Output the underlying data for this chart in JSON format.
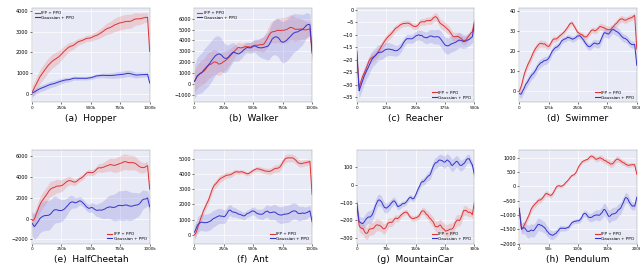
{
  "subplots": [
    {
      "label": "(a)  Hopper",
      "env": "hopper",
      "legend_loc": "upper left"
    },
    {
      "label": "(b)  Walker",
      "env": "walker",
      "legend_loc": "upper left"
    },
    {
      "label": "(c)  Reacher",
      "env": "reacher",
      "legend_loc": "lower right"
    },
    {
      "label": "(d)  Swimmer",
      "env": "swimmer",
      "legend_loc": "lower right"
    },
    {
      "label": "(e)  HalfCheetah",
      "env": "halfcheetah",
      "legend_loc": "lower right"
    },
    {
      "label": "(f)  Ant",
      "env": "ant",
      "legend_loc": "lower right"
    },
    {
      "label": "(g)  MountainCar",
      "env": "mountaincar",
      "legend_loc": "lower right"
    },
    {
      "label": "(h)  Pendulum",
      "env": "pendulum",
      "legend_loc": "lower right"
    }
  ],
  "legend_labels": [
    "IFP + PPO",
    "Gaussian + PPO"
  ],
  "red_color": "#dd3333",
  "blue_color": "#3333cc",
  "red_fill": "#e88888",
  "blue_fill": "#8888dd",
  "bg_color": "#e8eaf6",
  "grid_color": "#ffffff",
  "fig_bg": "#ffffff"
}
